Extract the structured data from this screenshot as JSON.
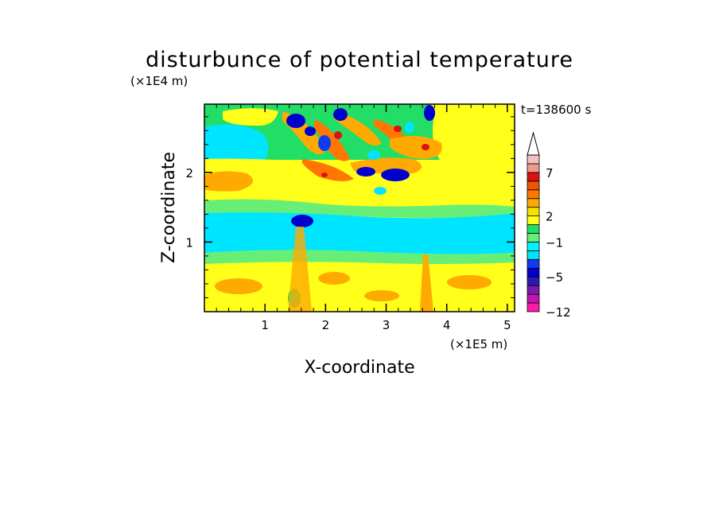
{
  "chart_data": {
    "type": "heatmap",
    "title": "disturbunce of potential temperature",
    "time_label": "t=138600 s",
    "xlabel": "X-coordinate",
    "ylabel": "Z-coordinate",
    "x_unit": "(×1E5 m)",
    "y_unit": "(×1E4 m)",
    "xlim": [
      0,
      5.12
    ],
    "ylim": [
      0,
      2.98
    ],
    "x_ticks": [
      1,
      2,
      3,
      4,
      5
    ],
    "y_ticks": [
      1,
      2
    ],
    "colorbar": {
      "levels": [
        -12,
        -10,
        -8,
        -6,
        -5,
        -4,
        -3,
        -2,
        -1,
        0,
        1,
        2,
        3,
        4,
        5,
        6,
        7,
        8,
        9
      ],
      "colors": [
        "#ff1aa8",
        "#c214b0",
        "#7a1aad",
        "#2d1ab5",
        "#0000cc",
        "#0f3cf0",
        "#00e5ff",
        "#00f5ff",
        "#66ee77",
        "#22dd66",
        "#ffff1a",
        "#f5e000",
        "#ffaa00",
        "#ff7700",
        "#ee5500",
        "#dd1111",
        "#f09a8a",
        "#f5c0c0"
      ],
      "tick_labels": [
        "-12",
        "-5",
        "-1",
        "2",
        "7"
      ],
      "tick_values": [
        -12,
        -5,
        -1,
        2,
        7
      ],
      "extend": "max"
    }
  }
}
